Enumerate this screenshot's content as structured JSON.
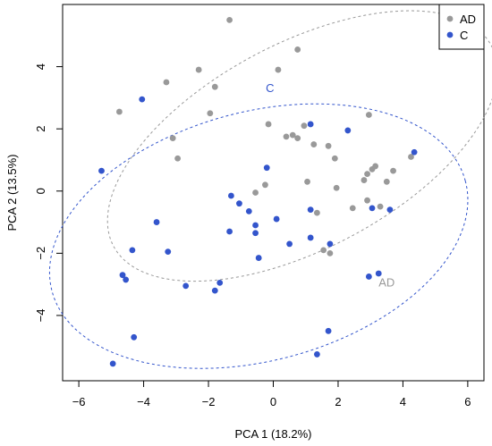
{
  "chart_data": {
    "type": "scatter",
    "xlabel": "PCA 1 (18.2%)",
    "ylabel": "PCA 2 (13.5%)",
    "xlim": [
      -6.5,
      6.5
    ],
    "ylim": [
      -6.1,
      6.0
    ],
    "xticks": [
      -6,
      -4,
      -2,
      0,
      2,
      4,
      6
    ],
    "yticks": [
      -4,
      -2,
      0,
      2,
      4
    ],
    "grid": false,
    "legend_position": "top-right",
    "series": [
      {
        "name": "AD",
        "color": "#999999",
        "ellipse_label": "AD",
        "ellipse": {
          "cx": 0.9,
          "cy": 1.45,
          "rx": 6.6,
          "ry": 3.3,
          "angle_deg": -28
        },
        "points": [
          [
            -1.35,
            5.5
          ],
          [
            0.75,
            4.55
          ],
          [
            -3.3,
            3.5
          ],
          [
            -2.3,
            3.9
          ],
          [
            -1.8,
            3.35
          ],
          [
            0.15,
            3.9
          ],
          [
            -4.75,
            2.55
          ],
          [
            -1.95,
            2.5
          ],
          [
            -3.1,
            1.7
          ],
          [
            -2.95,
            1.05
          ],
          [
            -0.15,
            2.15
          ],
          [
            0.4,
            1.75
          ],
          [
            0.6,
            1.8
          ],
          [
            0.75,
            1.7
          ],
          [
            0.95,
            2.1
          ],
          [
            1.25,
            1.5
          ],
          [
            1.7,
            1.45
          ],
          [
            1.9,
            1.05
          ],
          [
            2.95,
            2.45
          ],
          [
            2.9,
            0.55
          ],
          [
            3.05,
            0.7
          ],
          [
            3.15,
            0.8
          ],
          [
            2.8,
            0.35
          ],
          [
            3.5,
            0.3
          ],
          [
            3.7,
            0.65
          ],
          [
            4.25,
            1.1
          ],
          [
            1.05,
            0.3
          ],
          [
            -0.25,
            0.2
          ],
          [
            -0.55,
            -0.05
          ],
          [
            1.95,
            0.1
          ],
          [
            1.35,
            -0.7
          ],
          [
            2.45,
            -0.55
          ],
          [
            2.9,
            -0.3
          ],
          [
            3.3,
            -0.5
          ],
          [
            1.55,
            -1.9
          ],
          [
            1.75,
            -2.0
          ]
        ]
      },
      {
        "name": "C",
        "color": "#3355cc",
        "ellipse_label": "C",
        "ellipse": {
          "cx": -0.45,
          "cy": -1.45,
          "rx": 6.6,
          "ry": 4.0,
          "angle_deg": -15
        },
        "points": [
          [
            -4.05,
            2.95
          ],
          [
            -5.3,
            0.65
          ],
          [
            -3.6,
            -1.0
          ],
          [
            -4.35,
            -1.9
          ],
          [
            -3.25,
            -1.95
          ],
          [
            -4.65,
            -2.7
          ],
          [
            -4.55,
            -2.85
          ],
          [
            -2.7,
            -3.05
          ],
          [
            -1.65,
            -2.95
          ],
          [
            -1.8,
            -3.2
          ],
          [
            -4.3,
            -4.7
          ],
          [
            -4.95,
            -5.55
          ],
          [
            -1.3,
            -0.15
          ],
          [
            -1.05,
            -0.4
          ],
          [
            -0.75,
            -0.65
          ],
          [
            -1.35,
            -1.3
          ],
          [
            -0.55,
            -1.1
          ],
          [
            -0.55,
            -1.35
          ],
          [
            -0.45,
            -2.15
          ],
          [
            -0.2,
            0.75
          ],
          [
            0.1,
            -0.9
          ],
          [
            1.15,
            2.15
          ],
          [
            1.15,
            -0.6
          ],
          [
            1.15,
            -1.5
          ],
          [
            0.5,
            -1.7
          ],
          [
            2.3,
            1.95
          ],
          [
            1.75,
            -1.7
          ],
          [
            3.05,
            -0.55
          ],
          [
            3.6,
            -0.6
          ],
          [
            4.35,
            1.25
          ],
          [
            2.95,
            -2.75
          ],
          [
            3.25,
            -2.65
          ],
          [
            1.7,
            -4.5
          ],
          [
            1.35,
            -5.25
          ]
        ]
      }
    ]
  }
}
